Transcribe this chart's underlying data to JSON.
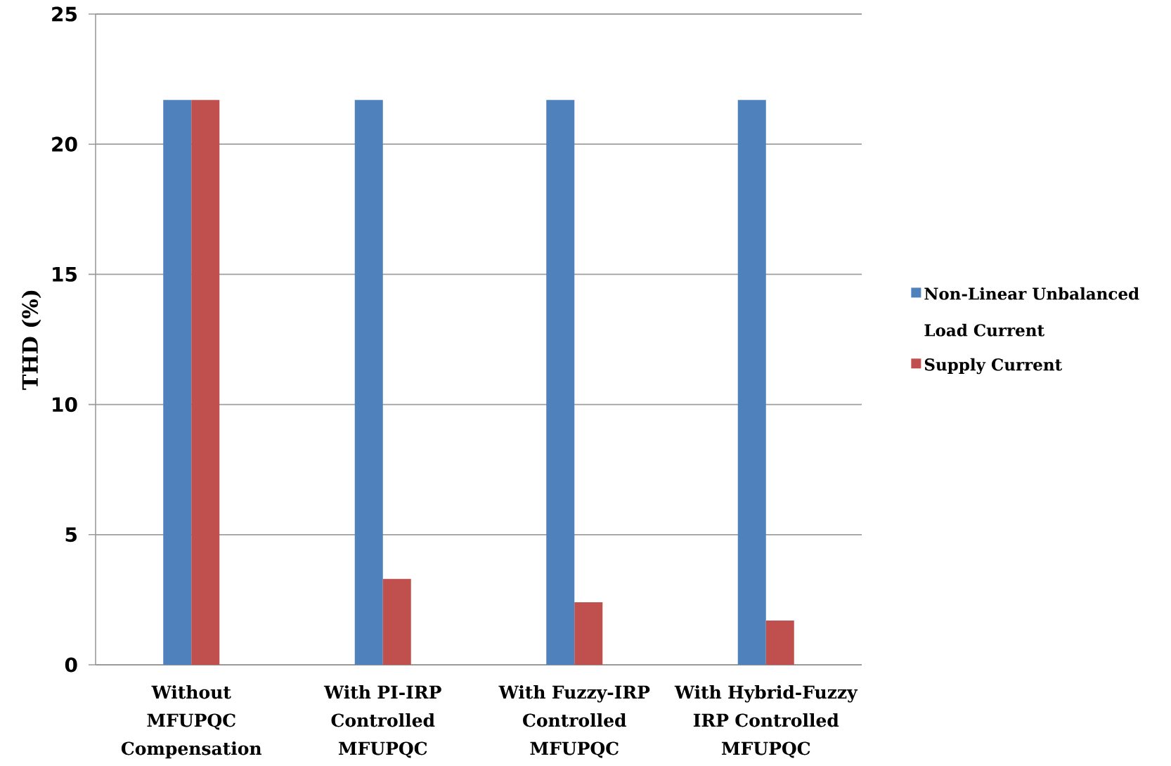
{
  "chart_data": {
    "type": "bar",
    "ylabel": "THD (%)",
    "categories": [
      "Without\nMFUPQC\nCompensation",
      "With PI-IRP\nControlled\nMFUPQC",
      "With Fuzzy-IRP\nControlled\nMFUPQC",
      "With Hybrid-Fuzzy\nIRP Controlled\nMFUPQC"
    ],
    "series": [
      {
        "name": "Non-Linear Unbalanced\nLoad Current",
        "color": "#4f81bd",
        "values": [
          21.7,
          21.7,
          21.7,
          21.7
        ]
      },
      {
        "name": "Supply Current",
        "color": "#c0504d",
        "values": [
          21.7,
          3.3,
          2.4,
          1.7
        ]
      }
    ],
    "ylim": [
      0,
      25
    ],
    "yticks": [
      0,
      5,
      10,
      15,
      20,
      25
    ],
    "grid": "y",
    "legend": "right"
  }
}
